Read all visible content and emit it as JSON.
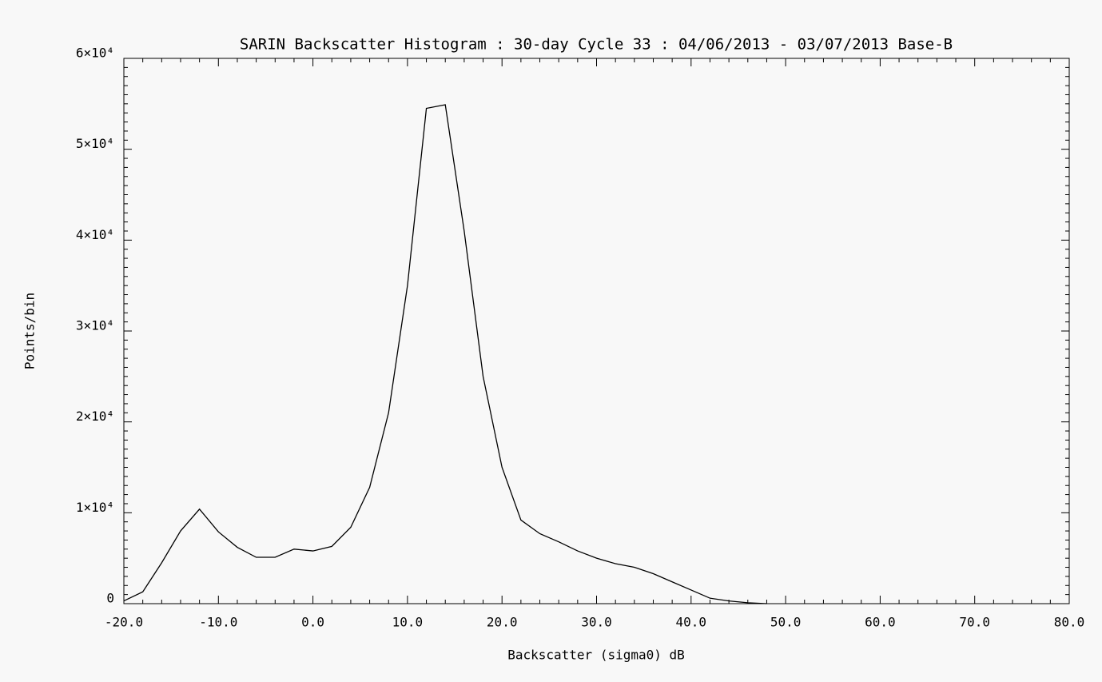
{
  "chart_data": {
    "type": "line",
    "title": "SARIN Backscatter Histogram : 30-day Cycle 33 : 04/06/2013 - 03/07/2013 Base-B",
    "x_label": "Backscatter (sigma0) dB",
    "y_label": "Points/bin",
    "x": [
      -20,
      -18,
      -16,
      -14,
      -12,
      -10,
      -8,
      -6,
      -4,
      -2,
      0,
      2,
      4,
      6,
      8,
      10,
      12,
      14,
      16,
      18,
      20,
      22,
      24,
      26,
      28,
      30,
      32,
      34,
      36,
      38,
      40,
      42,
      44,
      46,
      48
    ],
    "series": [
      {
        "name": "Points/bin",
        "color": "#000000",
        "values": [
          300,
          1300,
          4500,
          8000,
          10400,
          7900,
          6200,
          5100,
          5100,
          6000,
          5800,
          6300,
          8400,
          12800,
          21000,
          35000,
          54500,
          54900,
          41000,
          25000,
          15000,
          9200,
          7700,
          6800,
          5800,
          5000,
          4400,
          4000,
          3300,
          2400,
          1500,
          600,
          300,
          100,
          0
        ]
      }
    ],
    "xlim": [
      -20,
      80
    ],
    "xticks": [
      {
        "value": -20,
        "label": "-20.0"
      },
      {
        "value": -10,
        "label": "-10.0"
      },
      {
        "value": 0,
        "label": "0.0"
      },
      {
        "value": 10,
        "label": "10.0"
      },
      {
        "value": 20,
        "label": "20.0"
      },
      {
        "value": 30,
        "label": "30.0"
      },
      {
        "value": 40,
        "label": "40.0"
      },
      {
        "value": 50,
        "label": "50.0"
      },
      {
        "value": 60,
        "label": "60.0"
      },
      {
        "value": 70,
        "label": "70.0"
      },
      {
        "value": 80,
        "label": "80.0"
      }
    ],
    "ylim": [
      0,
      60000
    ],
    "yticks": [
      0,
      {
        "value": 10000,
        "label": "1×10⁴"
      },
      {
        "value": 20000,
        "label": "2×10⁴"
      },
      {
        "value": 30000,
        "label": "3×10⁴"
      },
      {
        "value": 40000,
        "label": "4×10⁴"
      },
      {
        "value": 50000,
        "label": "5×10⁴"
      },
      {
        "value": 60000,
        "label": "6×10⁴"
      }
    ],
    "minor_ticks": {
      "x": 5,
      "y": 10
    }
  }
}
